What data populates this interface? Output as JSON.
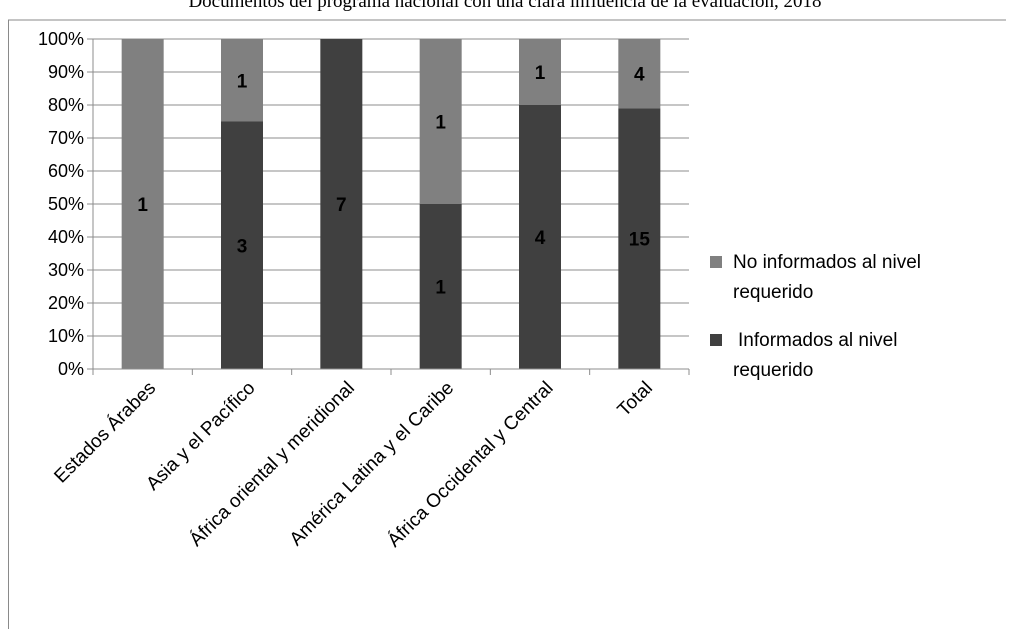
{
  "chart_data": {
    "type": "bar",
    "stacked": true,
    "percent_stacked": true,
    "title": "Documentos del programa nacional con una clara influencia de la evaluación, 2018",
    "categories": [
      "Estados Árabes",
      "Asia y el Pacífico",
      "África oriental y meridional",
      "América Latina y el Caribe",
      "África Occidental y Central",
      "Total"
    ],
    "series": [
      {
        "name": "Informados al nivel requerido",
        "color": "#404040",
        "values": [
          0,
          3,
          7,
          1,
          4,
          15
        ]
      },
      {
        "name": "No informados al nivel requerido",
        "color": "#808080",
        "values": [
          1,
          1,
          0,
          1,
          1,
          4
        ]
      }
    ],
    "y_ticks": [
      "0%",
      "10%",
      "20%",
      "30%",
      "40%",
      "50%",
      "60%",
      "70%",
      "80%",
      "90%",
      "100%"
    ],
    "ylim": [
      0,
      100
    ],
    "grid": true,
    "legend": {
      "position": "right",
      "entries": [
        {
          "label_lines": [
            "No informados al nivel",
            "requerido"
          ],
          "color": "#808080"
        },
        {
          "label_lines": [
            "Informados al nivel",
            "requerido"
          ],
          "color": "#404040"
        }
      ]
    }
  }
}
